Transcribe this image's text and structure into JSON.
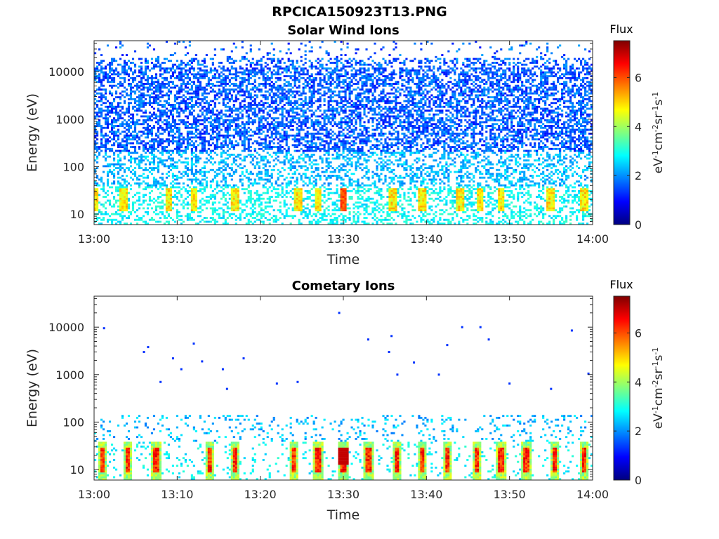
{
  "figure": {
    "title": "RPCICA150923T13.PNG"
  },
  "chart_data": [
    {
      "type": "heatmap",
      "title": "Solar Wind Ions",
      "xlabel": "Time",
      "ylabel": "Energy (eV)",
      "x_ticks": [
        "13:00",
        "13:10",
        "13:20",
        "13:30",
        "13:40",
        "13:50",
        "14:00"
      ],
      "x_range_minutes": [
        0,
        60
      ],
      "y_scale": "log",
      "y_ticks": [
        10,
        100,
        1000,
        10000
      ],
      "y_tick_labels": [
        "10",
        "100",
        "1000",
        "10000"
      ],
      "y_range": [
        6,
        45000
      ],
      "colorbar": {
        "title": "Flux",
        "label": "eV-1cm-2sr-1s-1",
        "range": [
          0,
          7.5
        ],
        "ticks": [
          0,
          2,
          4,
          6
        ],
        "colormap": "jet"
      },
      "low_energy_bursts_minutes": [
        0,
        3.5,
        9,
        12,
        17,
        24.5,
        27,
        30,
        36,
        39.5,
        44,
        46.5,
        49,
        55,
        59
      ],
      "peak_flux_time": "13:30",
      "peak_flux_value": 6.3,
      "background_flux_range_high_energy": [
        1.0,
        2.2
      ]
    },
    {
      "type": "heatmap",
      "title": "Cometary Ions",
      "xlabel": "Time",
      "ylabel": "Energy (eV)",
      "x_ticks": [
        "13:00",
        "13:10",
        "13:20",
        "13:30",
        "13:40",
        "13:50",
        "14:00"
      ],
      "x_range_minutes": [
        0,
        60
      ],
      "y_scale": "log",
      "y_ticks": [
        10,
        100,
        1000,
        10000
      ],
      "y_tick_labels": [
        "10",
        "100",
        "1000",
        "10000"
      ],
      "y_range": [
        6,
        45000
      ],
      "colorbar": {
        "title": "Flux",
        "label": "eV-1cm-2sr-1s-1",
        "range": [
          0,
          7.5
        ],
        "ticks": [
          0,
          2,
          4,
          6
        ],
        "colormap": "jet"
      },
      "low_energy_bursts_minutes": [
        1,
        4,
        7.5,
        14,
        17,
        24,
        27,
        30,
        33,
        36.5,
        39.5,
        42.5,
        46,
        49,
        52,
        55.5,
        59
      ],
      "peak_flux_time": "13:30",
      "peak_flux_value": 7.1,
      "sparse_high_energy_points": [
        [
          1.2,
          9500
        ],
        [
          6,
          3000
        ],
        [
          6.5,
          3800
        ],
        [
          8,
          700
        ],
        [
          9.5,
          2200
        ],
        [
          10.5,
          1300
        ],
        [
          12,
          4500
        ],
        [
          13,
          1900
        ],
        [
          15.5,
          1300
        ],
        [
          16,
          500
        ],
        [
          18,
          2200
        ],
        [
          22,
          650
        ],
        [
          24.5,
          700
        ],
        [
          29.5,
          20000
        ],
        [
          33,
          5500
        ],
        [
          35.5,
          3000
        ],
        [
          35.8,
          6500
        ],
        [
          36.5,
          1000
        ],
        [
          38.5,
          1800
        ],
        [
          41.5,
          1000
        ],
        [
          42.5,
          4200
        ],
        [
          44.3,
          10000
        ],
        [
          46.5,
          10000
        ],
        [
          47.5,
          5500
        ],
        [
          50,
          650
        ],
        [
          55,
          500
        ],
        [
          57.5,
          8500
        ],
        [
          59.5,
          1050
        ]
      ]
    }
  ]
}
